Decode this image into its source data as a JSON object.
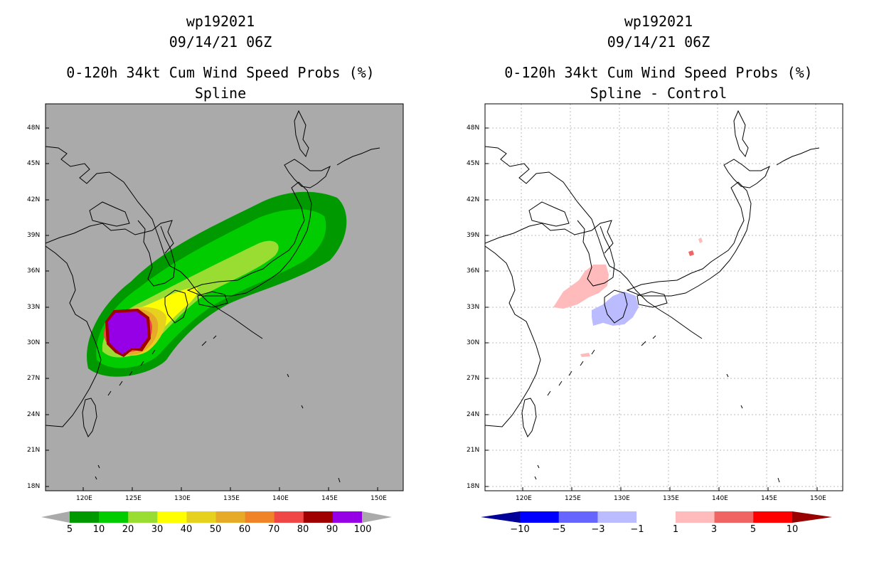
{
  "left_panel": {
    "title_lines": [
      "wp192021",
      "09/14/21 06Z",
      "0-120h 34kt Cum Wind Speed Probs (%)",
      "Spline"
    ],
    "lat_labels": [
      "48N",
      "45N",
      "42N",
      "39N",
      "36N",
      "33N",
      "30N",
      "27N",
      "24N",
      "21N",
      "18N"
    ],
    "lon_labels": [
      "120E",
      "125E",
      "130E",
      "135E",
      "140E",
      "145E",
      "150E"
    ],
    "colorbar": {
      "labels": [
        "5",
        "10",
        "20",
        "30",
        "40",
        "50",
        "60",
        "70",
        "80",
        "90",
        "100"
      ],
      "colors": [
        "#009900",
        "#00cc00",
        "#99dd33",
        "#ffff00",
        "#e6d21e",
        "#e6aa28",
        "#f08228",
        "#f04646",
        "#a00000",
        "#9600e6"
      ],
      "end_color": "#aaaaaa"
    }
  },
  "right_panel": {
    "title_lines": [
      "wp192021",
      "09/14/21 06Z",
      "0-120h 34kt Cum Wind Speed Probs (%)",
      "Spline - Control"
    ],
    "lat_labels": [
      "48N",
      "45N",
      "42N",
      "39N",
      "36N",
      "33N",
      "30N",
      "27N",
      "24N",
      "21N",
      "18N"
    ],
    "lon_labels": [
      "120E",
      "125E",
      "130E",
      "135E",
      "140E",
      "145E",
      "150E"
    ],
    "colorbar": {
      "labels": [
        "−10",
        "−5",
        "−3",
        "−1",
        "1",
        "3",
        "5",
        "10"
      ],
      "colors": [
        "#0000ff",
        "#6666ff",
        "#bbbbff",
        "#ffffff",
        "#ffbbbb",
        "#f06464",
        "#ff0000"
      ],
      "low_end_color": "#000099",
      "high_end_color": "#990000"
    }
  },
  "colors": {
    "map_bg_left": "#aaaaaa",
    "coast": "#000000",
    "grid": "#bbbbbb"
  }
}
